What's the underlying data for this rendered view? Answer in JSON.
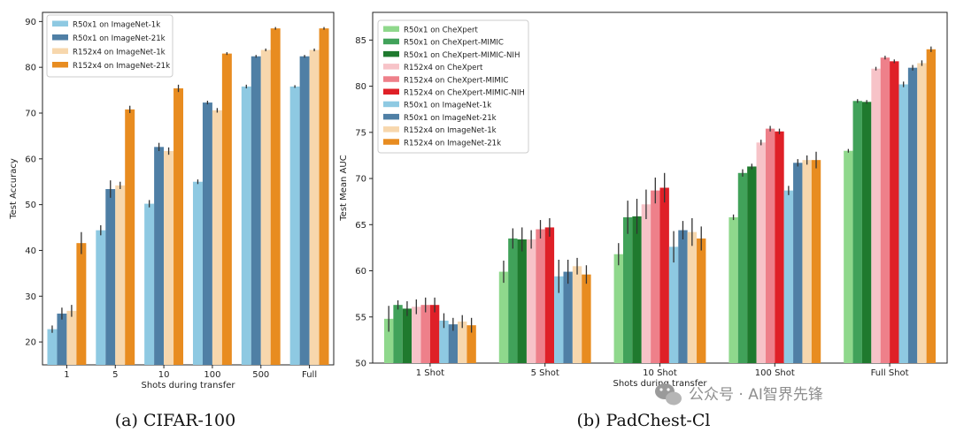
{
  "palette": {
    "R50x1 on CheXpert": "#8fd88c",
    "R50x1 on CheXpert-MIMIC": "#41a25a",
    "R50x1 on CheXpert-MIMIC-NIH": "#1f7a2e",
    "R152x4 on CheXpert": "#f7c3c8",
    "R152x4 on CheXpert-MIMIC": "#ee808a",
    "R152x4 on CheXpert-MIMIC-NIH": "#df2027",
    "R50x1 on ImageNet-1k": "#8ec9e2",
    "R50x1 on ImageNet-21k": "#4f7fa5",
    "R152x4 on ImageNet-1k": "#f7d7ad",
    "R152x4 on ImageNet-21k": "#e88c20"
  },
  "captions": {
    "a": "(a) CIFAR-100",
    "b": "(b) PadChest-Cl"
  },
  "watermark": {
    "icon": "wechat-icon",
    "text": "公众号 · AI智界先锋"
  },
  "chart_data": [
    {
      "type": "bar",
      "xlabel": "Shots during transfer",
      "ylabel": "Test Accuracy",
      "ylim": [
        15,
        92
      ],
      "yticks": [
        20,
        30,
        40,
        50,
        60,
        70,
        80,
        90
      ],
      "legend_position": "top-left",
      "categories": [
        "1",
        "5",
        "10",
        "100",
        "500",
        "Full"
      ],
      "series": [
        {
          "name": "R50x1 on ImageNet-1k",
          "values": [
            22.8,
            44.4,
            50.2,
            55.0,
            75.8,
            75.8
          ],
          "err": [
            0.8,
            1.1,
            0.8,
            0.5,
            0.4,
            0.3
          ]
        },
        {
          "name": "R50x1 on ImageNet-21k",
          "values": [
            26.2,
            53.4,
            62.6,
            72.3,
            82.4,
            82.4
          ],
          "err": [
            1.3,
            1.9,
            0.9,
            0.4,
            0.3,
            0.3
          ]
        },
        {
          "name": "R152x4 on ImageNet-1k",
          "values": [
            26.8,
            54.2,
            61.7,
            70.6,
            83.8,
            83.8
          ],
          "err": [
            1.3,
            0.8,
            0.8,
            0.5,
            0.3,
            0.3
          ]
        },
        {
          "name": "R152x4 on ImageNet-21k",
          "values": [
            41.6,
            70.8,
            75.4,
            83.0,
            88.5,
            88.5
          ],
          "err": [
            2.4,
            0.8,
            0.8,
            0.3,
            0.3,
            0.3
          ]
        }
      ]
    },
    {
      "type": "bar",
      "xlabel": "Shots during transfer",
      "ylabel": "Test Mean AUC",
      "ylim": [
        50,
        88
      ],
      "yticks": [
        50,
        55,
        60,
        65,
        70,
        75,
        80,
        85
      ],
      "legend_position": "top-left",
      "categories": [
        "1 Shot",
        "5 Shot",
        "10 Shot",
        "100 Shot",
        "Full Shot"
      ],
      "series": [
        {
          "name": "R50x1 on CheXpert",
          "values": [
            54.8,
            59.9,
            61.8,
            65.8,
            73.0
          ],
          "err": [
            1.4,
            1.2,
            1.2,
            0.3,
            0.2
          ]
        },
        {
          "name": "R50x1 on CheXpert-MIMIC",
          "values": [
            56.3,
            63.5,
            65.8,
            70.6,
            78.4
          ],
          "err": [
            0.5,
            1.1,
            1.8,
            0.4,
            0.2
          ]
        },
        {
          "name": "R50x1 on CheXpert-MIMIC-NIH",
          "values": [
            55.9,
            63.4,
            65.9,
            71.3,
            78.3
          ],
          "err": [
            0.8,
            1.3,
            1.9,
            0.3,
            0.2
          ]
        },
        {
          "name": "R152x4 on CheXpert",
          "values": [
            56.1,
            63.4,
            67.2,
            73.9,
            81.9
          ],
          "err": [
            0.8,
            1.0,
            1.6,
            0.3,
            0.2
          ]
        },
        {
          "name": "R152x4 on CheXpert-MIMIC",
          "values": [
            56.3,
            64.5,
            68.7,
            75.4,
            83.1
          ],
          "err": [
            0.8,
            1.0,
            1.4,
            0.3,
            0.2
          ]
        },
        {
          "name": "R152x4 on CheXpert-MIMIC-NIH",
          "values": [
            56.3,
            64.7,
            69.0,
            75.1,
            82.7
          ],
          "err": [
            0.8,
            1.0,
            1.6,
            0.3,
            0.2
          ]
        },
        {
          "name": "R50x1 on ImageNet-1k",
          "values": [
            54.6,
            59.4,
            62.6,
            68.7,
            80.2
          ],
          "err": [
            0.8,
            1.8,
            1.7,
            0.5,
            0.3
          ]
        },
        {
          "name": "R50x1 on ImageNet-21k",
          "values": [
            54.2,
            59.9,
            64.4,
            71.7,
            82.0
          ],
          "err": [
            0.7,
            1.3,
            1.0,
            0.4,
            0.3
          ]
        },
        {
          "name": "R152x4 on ImageNet-1k",
          "values": [
            54.5,
            60.5,
            64.2,
            72.0,
            82.5
          ],
          "err": [
            0.7,
            0.9,
            1.5,
            0.5,
            0.3
          ]
        },
        {
          "name": "R152x4 on ImageNet-21k",
          "values": [
            54.1,
            59.6,
            63.5,
            72.0,
            84.0
          ],
          "err": [
            0.8,
            1.0,
            1.3,
            0.9,
            0.3
          ]
        }
      ]
    }
  ]
}
